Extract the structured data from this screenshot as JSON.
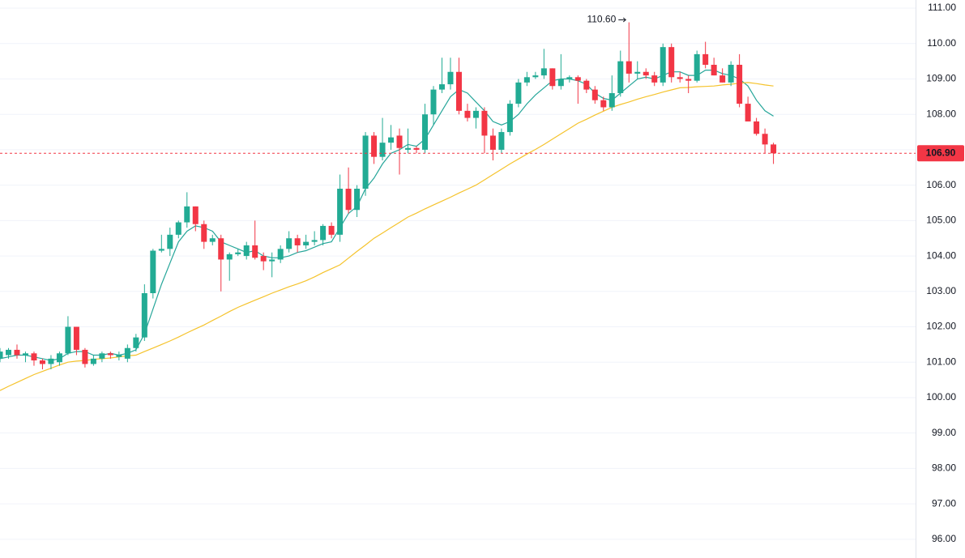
{
  "chart_data": {
    "type": "candlestick",
    "open": [
      101.1,
      101.2,
      101.35,
      101.2,
      101.25,
      101.05,
      100.95,
      101.0,
      101.25,
      102.0,
      101.35,
      100.95,
      101.1,
      101.25,
      101.15,
      101.1,
      101.4,
      101.7,
      102.95,
      104.15,
      104.2,
      104.6,
      104.95,
      105.4,
      104.9,
      104.4,
      104.5,
      103.9,
      104.05,
      104.0,
      104.3,
      104.0,
      103.85,
      103.9,
      104.2,
      104.5,
      104.3,
      104.4,
      104.45,
      104.85,
      104.6,
      105.9,
      105.3,
      105.9,
      107.4,
      106.8,
      107.2,
      107.4,
      107.0,
      107.05,
      107.0,
      108.0,
      108.7,
      108.85,
      109.2,
      108.1,
      107.9,
      108.1,
      107.4,
      107.0,
      107.5,
      108.3,
      108.9,
      109.05,
      109.1,
      109.3,
      108.8,
      109.0,
      109.05,
      108.95,
      108.7,
      108.4,
      108.2,
      108.6,
      109.5,
      109.15,
      109.2,
      109.1,
      108.9,
      109.9,
      109.05,
      109.0,
      108.95,
      109.7,
      109.4,
      109.1,
      108.9,
      109.4,
      108.3,
      107.8,
      107.45,
      107.15
    ],
    "high": [
      101.4,
      101.4,
      101.5,
      101.3,
      101.3,
      101.1,
      101.2,
      101.3,
      102.3,
      102.0,
      101.4,
      101.2,
      101.3,
      101.3,
      101.3,
      101.5,
      101.8,
      103.2,
      104.2,
      104.6,
      104.8,
      105.0,
      105.8,
      105.4,
      105.0,
      104.6,
      104.6,
      104.1,
      104.2,
      104.4,
      105.0,
      104.1,
      104.1,
      104.3,
      104.7,
      104.6,
      104.6,
      104.7,
      104.9,
      104.95,
      106.3,
      106.5,
      106.0,
      107.5,
      107.5,
      107.9,
      107.7,
      107.6,
      107.6,
      107.1,
      108.3,
      108.8,
      109.6,
      109.6,
      109.6,
      108.3,
      108.2,
      108.2,
      107.6,
      107.6,
      108.4,
      109.0,
      109.2,
      109.2,
      109.85,
      109.3,
      109.7,
      109.1,
      109.1,
      109.0,
      108.8,
      108.5,
      109.1,
      109.8,
      110.6,
      109.5,
      109.3,
      109.2,
      110.0,
      110.0,
      109.2,
      109.1,
      109.8,
      110.05,
      109.6,
      109.3,
      109.5,
      109.7,
      108.5,
      107.9,
      107.6,
      107.2
    ],
    "low": [
      101.0,
      101.1,
      101.1,
      101.0,
      100.9,
      100.8,
      100.8,
      100.9,
      101.2,
      101.2,
      100.85,
      100.9,
      101.0,
      101.1,
      101.05,
      101.0,
      101.3,
      101.6,
      102.8,
      104.1,
      104.0,
      104.5,
      104.8,
      104.7,
      104.2,
      104.3,
      103.0,
      103.3,
      104.0,
      103.9,
      103.9,
      103.6,
      103.4,
      103.8,
      104.1,
      104.1,
      104.2,
      104.3,
      104.3,
      104.5,
      104.4,
      105.2,
      105.1,
      105.7,
      106.6,
      106.7,
      107.0,
      106.3,
      106.9,
      106.9,
      106.9,
      107.7,
      108.6,
      108.7,
      108.0,
      107.8,
      107.6,
      106.9,
      106.7,
      106.9,
      107.4,
      108.2,
      108.8,
      109.0,
      109.0,
      108.7,
      108.7,
      108.9,
      108.3,
      108.6,
      108.3,
      108.1,
      108.1,
      108.5,
      108.9,
      109.0,
      109.0,
      108.8,
      108.8,
      108.9,
      108.9,
      108.6,
      108.9,
      109.3,
      109.1,
      108.9,
      108.8,
      108.2,
      107.8,
      107.4,
      106.9,
      106.6
    ],
    "close": [
      101.3,
      101.35,
      101.2,
      101.25,
      101.05,
      100.95,
      101.1,
      101.25,
      102.0,
      101.35,
      100.95,
      101.1,
      101.25,
      101.2,
      101.2,
      101.4,
      101.7,
      102.95,
      104.15,
      104.2,
      104.6,
      104.95,
      105.4,
      104.9,
      104.4,
      104.5,
      103.9,
      104.05,
      104.1,
      104.3,
      103.95,
      103.85,
      103.9,
      104.2,
      104.5,
      104.3,
      104.4,
      104.45,
      104.85,
      104.6,
      105.9,
      105.3,
      105.9,
      107.4,
      106.8,
      107.2,
      107.35,
      107.05,
      107.05,
      107.0,
      108.0,
      108.7,
      108.85,
      109.2,
      108.1,
      107.9,
      108.1,
      107.4,
      107.0,
      107.5,
      108.3,
      108.9,
      109.05,
      109.1,
      109.3,
      108.8,
      109.0,
      109.05,
      108.95,
      108.7,
      108.4,
      108.2,
      108.6,
      109.5,
      109.15,
      109.2,
      109.1,
      108.9,
      109.9,
      109.05,
      109.0,
      108.95,
      109.7,
      109.4,
      109.1,
      108.9,
      109.4,
      108.3,
      107.8,
      107.45,
      107.15,
      106.9
    ],
    "up_color": "#22ab94",
    "down_color": "#f23645",
    "lines": [
      {
        "color": "#26a69a",
        "values": [
          101.1,
          101.15,
          101.2,
          101.2,
          101.15,
          101.1,
          101.05,
          101.1,
          101.25,
          101.3,
          101.3,
          101.2,
          101.2,
          101.25,
          101.2,
          101.25,
          101.35,
          101.8,
          102.5,
          103.2,
          103.8,
          104.4,
          104.7,
          104.85,
          104.8,
          104.7,
          104.4,
          104.3,
          104.2,
          104.1,
          104.15,
          104.0,
          103.95,
          103.95,
          104.0,
          104.1,
          104.15,
          104.25,
          104.35,
          104.4,
          104.8,
          105.2,
          105.4,
          105.9,
          106.2,
          106.6,
          106.9,
          107.0,
          107.15,
          107.1,
          107.3,
          107.7,
          108.1,
          108.5,
          108.7,
          108.6,
          108.35,
          108.1,
          107.8,
          107.7,
          107.8,
          108.0,
          108.3,
          108.55,
          108.75,
          108.95,
          109.0,
          109.0,
          108.95,
          108.85,
          108.6,
          108.45,
          108.4,
          108.6,
          108.8,
          109.0,
          109.05,
          109.0,
          109.1,
          109.2,
          109.2,
          109.1,
          109.1,
          109.25,
          109.25,
          109.15,
          109.1,
          109.0,
          108.8,
          108.4,
          108.1,
          107.95
        ]
      },
      {
        "color": "#f5c32c",
        "values": [
          100.2,
          100.32,
          100.43,
          100.54,
          100.65,
          100.74,
          100.83,
          100.92,
          101.0,
          101.03,
          101.05,
          101.08,
          101.1,
          101.12,
          101.15,
          101.18,
          101.2,
          101.3,
          101.4,
          101.5,
          101.6,
          101.71,
          101.83,
          101.94,
          102.05,
          102.18,
          102.3,
          102.43,
          102.55,
          102.65,
          102.75,
          102.85,
          102.95,
          103.04,
          103.13,
          103.21,
          103.3,
          103.41,
          103.53,
          103.64,
          103.75,
          103.94,
          104.13,
          104.31,
          104.5,
          104.65,
          104.8,
          104.95,
          105.1,
          105.21,
          105.33,
          105.44,
          105.55,
          105.66,
          105.78,
          105.89,
          106.0,
          106.15,
          106.3,
          106.45,
          106.6,
          106.74,
          106.88,
          107.01,
          107.15,
          107.3,
          107.45,
          107.6,
          107.75,
          107.86,
          107.98,
          108.09,
          108.2,
          108.28,
          108.35,
          108.43,
          108.5,
          108.56,
          108.63,
          108.69,
          108.75,
          108.76,
          108.78,
          108.79,
          108.8,
          108.83,
          108.85,
          108.88,
          108.9,
          108.87,
          108.83,
          108.8
        ]
      }
    ],
    "ylim": [
      95.47,
      111.23
    ],
    "yticks": [
      {
        "value": 96,
        "label": "96.00"
      },
      {
        "value": 97,
        "label": "97.00"
      },
      {
        "value": 98,
        "label": "98.00"
      },
      {
        "value": 99,
        "label": "99.00"
      },
      {
        "value": 100,
        "label": "100.00"
      },
      {
        "value": 101,
        "label": "101.00"
      },
      {
        "value": 102,
        "label": "102.00"
      },
      {
        "value": 103,
        "label": "103.00"
      },
      {
        "value": 104,
        "label": "104.00"
      },
      {
        "value": 105,
        "label": "105.00"
      },
      {
        "value": 106,
        "label": "106.00"
      },
      {
        "value": 107,
        "label": "107.00"
      },
      {
        "value": 108,
        "label": "108.00"
      },
      {
        "value": 109,
        "label": "109.00"
      },
      {
        "value": 110,
        "label": "110.00"
      },
      {
        "value": 111,
        "label": "111.00"
      }
    ],
    "grid": true,
    "last_price": {
      "value": 106.9,
      "label": "106.90"
    },
    "high_annotation": {
      "value": 110.6,
      "label": "110.60"
    }
  }
}
